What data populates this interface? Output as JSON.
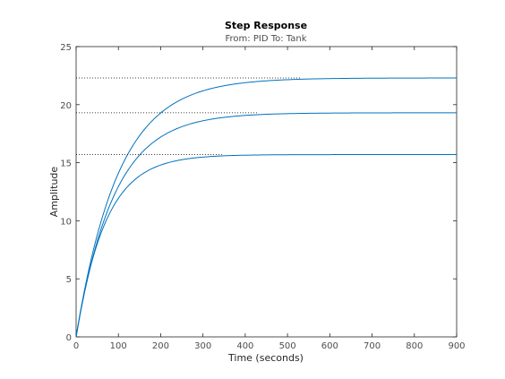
{
  "chart_data": {
    "type": "line",
    "title": "Step Response",
    "subtitle": "From: PID  To: Tank",
    "xlabel": "Time (seconds)",
    "ylabel": "Amplitude",
    "xlim": [
      0,
      900
    ],
    "ylim": [
      0,
      25
    ],
    "xticks": [
      0,
      100,
      200,
      300,
      400,
      500,
      600,
      700,
      800,
      900
    ],
    "yticks": [
      0,
      5,
      10,
      15,
      20,
      25
    ],
    "grid": false,
    "colors": {
      "line": "#0072bd",
      "axis": "#262626",
      "steady_state": "#000000"
    },
    "series": [
      {
        "final_value": 22.3,
        "time_constant": 100,
        "settling_time": 530,
        "points": [
          [
            0,
            0
          ],
          [
            50,
            8.77
          ],
          [
            100,
            14.1
          ],
          [
            150,
            17.32
          ],
          [
            200,
            19.28
          ],
          [
            250,
            20.47
          ],
          [
            300,
            21.19
          ],
          [
            350,
            21.63
          ],
          [
            400,
            21.89
          ],
          [
            450,
            22.05
          ],
          [
            500,
            22.15
          ],
          [
            530,
            22.19
          ],
          [
            900,
            22.3
          ]
        ]
      },
      {
        "final_value": 19.3,
        "time_constant": 90,
        "settling_time": 430,
        "points": [
          [
            0,
            0
          ],
          [
            50,
            8.2
          ],
          [
            100,
            13.0
          ],
          [
            150,
            15.6
          ],
          [
            200,
            17.3
          ],
          [
            250,
            18.2
          ],
          [
            300,
            18.7
          ],
          [
            350,
            19.0
          ],
          [
            400,
            19.15
          ],
          [
            430,
            19.2
          ],
          [
            900,
            19.3
          ]
        ]
      },
      {
        "final_value": 15.7,
        "time_constant": 70,
        "settling_time": 345,
        "points": [
          [
            0,
            0
          ],
          [
            50,
            8.1
          ],
          [
            100,
            12.0
          ],
          [
            150,
            14.0
          ],
          [
            200,
            14.95
          ],
          [
            250,
            15.35
          ],
          [
            300,
            15.55
          ],
          [
            345,
            15.62
          ],
          [
            900,
            15.7
          ]
        ]
      }
    ]
  }
}
